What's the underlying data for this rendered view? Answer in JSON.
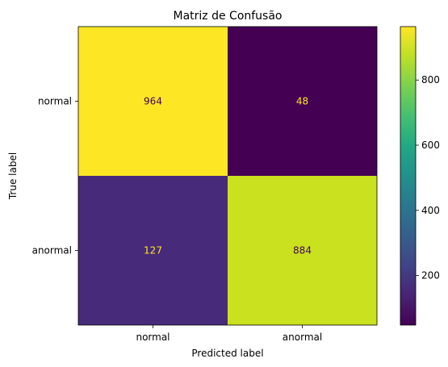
{
  "chart_data": {
    "type": "heatmap",
    "title": "Matriz de Confusão",
    "xlabel": "Predicted label",
    "ylabel": "True label",
    "x_categories": [
      "normal",
      "anormal"
    ],
    "y_categories": [
      "normal",
      "anormal"
    ],
    "values": [
      [
        964,
        48
      ],
      [
        127,
        884
      ]
    ],
    "colormap": "viridis",
    "colorbar": {
      "range": [
        48,
        964
      ],
      "ticks": [
        200,
        400,
        600,
        800
      ]
    },
    "cell_colors": {
      "normal_normal": "#fde725",
      "normal_anormal": "#440154",
      "anormal_normal": "#472a7a",
      "anormal_anormal": "#cae11f"
    },
    "text_colors": {
      "on_dark": "#fde725",
      "on_light": "#440154"
    }
  }
}
